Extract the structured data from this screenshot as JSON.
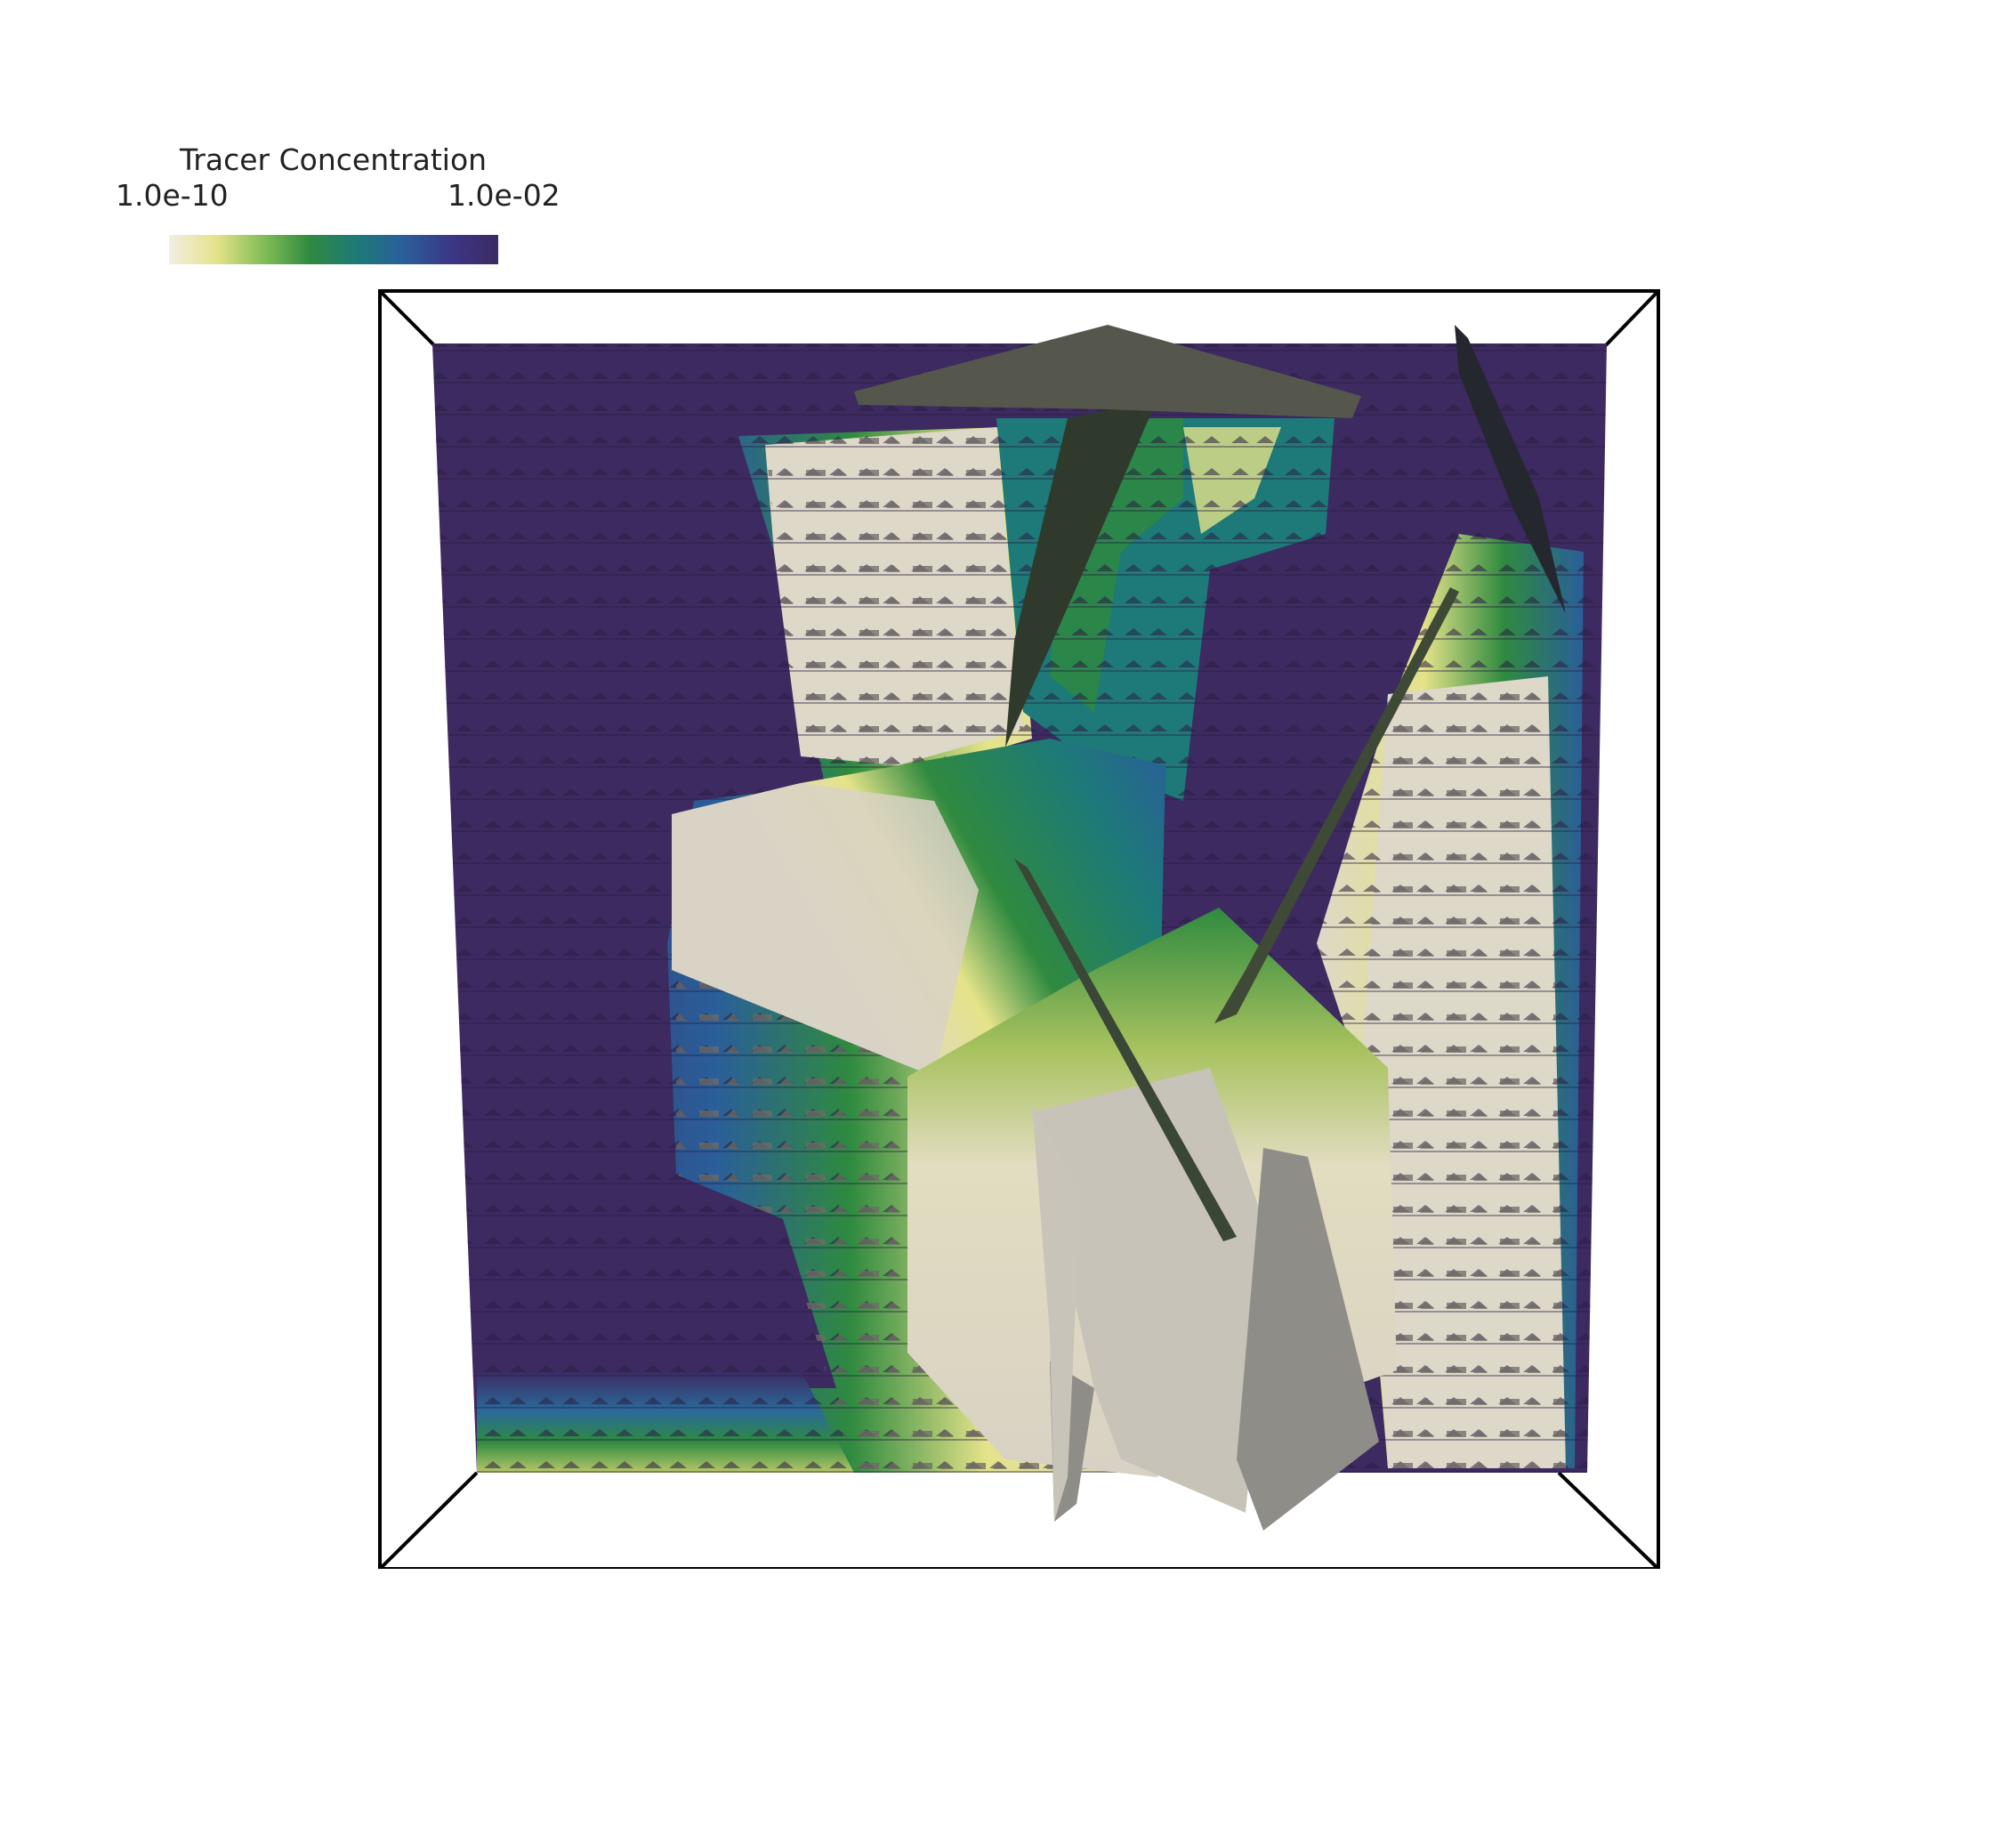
{
  "legend": {
    "title": "Tracer Concentration",
    "min_label": "1.0e-10",
    "max_label": "1.0e-02",
    "colormap": [
      "#f2eee4",
      "#e5e38a",
      "#84bd58",
      "#2f8a3f",
      "#1d7a78",
      "#2a5e9a",
      "#3b3786",
      "#3c2a61"
    ]
  },
  "scene": {
    "background_color": "#ffffff",
    "outline_color": "#000000",
    "low_concentration_color": "#d8d2c4",
    "high_concentration_color": "#3d2c54",
    "fracture_color_dark": "#2f3a2c",
    "fracture_color_light": "#8e8c86"
  }
}
